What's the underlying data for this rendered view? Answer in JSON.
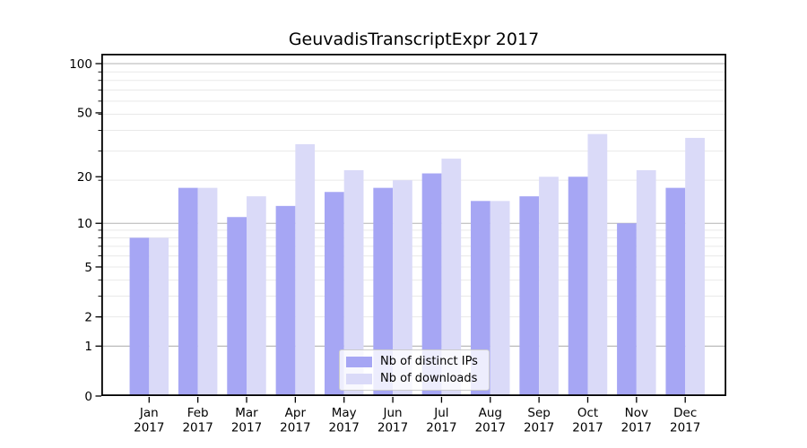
{
  "title": "GeuvadisTranscriptExpr 2017",
  "chart_data": {
    "type": "bar",
    "title": "GeuvadisTranscriptExpr 2017",
    "categories": [
      "Jan",
      "Feb",
      "Mar",
      "Apr",
      "May",
      "Jun",
      "Jul",
      "Aug",
      "Sep",
      "Oct",
      "Nov",
      "Dec"
    ],
    "year_label": "2017",
    "series": [
      {
        "name": "Nb of distinct IPs",
        "color": "#a6a6f4",
        "values": [
          8,
          17,
          11,
          13,
          16,
          17,
          21,
          14,
          15,
          20,
          10,
          17
        ]
      },
      {
        "name": "Nb of downloads",
        "color": "#dadaf8",
        "values": [
          8,
          17,
          15,
          32,
          22,
          19,
          26,
          14,
          20,
          37,
          22,
          35
        ]
      }
    ],
    "xlabel": "",
    "ylabel": "",
    "yscale": "log1p",
    "ylim": [
      0,
      115
    ],
    "yticks": [
      100,
      50,
      20,
      10,
      5,
      2,
      1,
      0
    ],
    "grid": "on",
    "gridlines": {
      "major": [
        1,
        10,
        100
      ],
      "minor": [
        2,
        3,
        4,
        5,
        6,
        7,
        8,
        9,
        19,
        29,
        39,
        49,
        59,
        69,
        79,
        89
      ]
    },
    "legend_position": "lower center"
  },
  "legend": {
    "items": [
      {
        "label": "Nb of distinct IPs",
        "color": "#a6a6f4"
      },
      {
        "label": "Nb of downloads",
        "color": "#dadaf8"
      }
    ]
  },
  "colors": {
    "background": "#ffffff",
    "axis": "#000000",
    "grid_major": "#b3b3b3",
    "grid_minor": "#e9e9e9",
    "tick_text": "#000000"
  }
}
